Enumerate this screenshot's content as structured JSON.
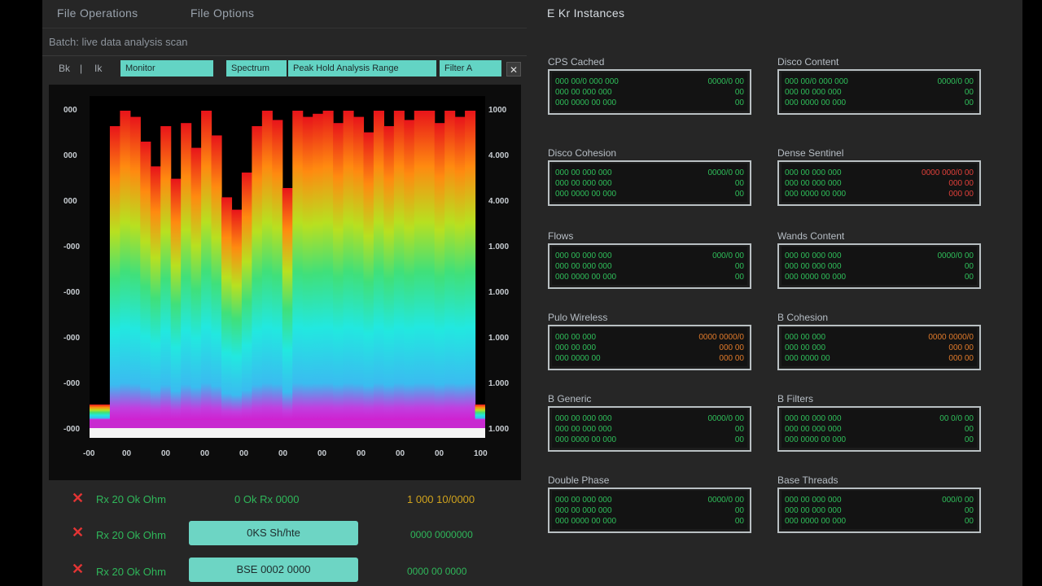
{
  "menu": {
    "items": [
      "File Operations",
      "File Options"
    ]
  },
  "toolbar": {
    "subtitle": "Batch: live data analysis scan",
    "btn_a": "Bk",
    "btn_b": "|",
    "btn_c": "Ik",
    "tabs": [
      "Monitor",
      "Spectrum",
      "Peak Hold Analysis Range",
      "Filter A"
    ]
  },
  "spectrum": {
    "y_left": [
      "000",
      "000",
      "000",
      "-000",
      "-000",
      "-000",
      "-000",
      "-000"
    ],
    "y_right": [
      "1000",
      "4.000",
      "4.000",
      "1.000",
      "1.000",
      "1.000",
      "1.000",
      "1.000"
    ],
    "x_ticks": [
      "-00",
      "00",
      "00",
      "00",
      "00",
      "00",
      "00",
      "00",
      "00",
      "00",
      "100"
    ],
    "levels": [
      0.05,
      0.05,
      0.95,
      1,
      0.98,
      0.9,
      0.82,
      0.95,
      0.78,
      0.96,
      0.88,
      1,
      0.92,
      0.72,
      0.68,
      0.8,
      0.95,
      1,
      0.97,
      0.75,
      1,
      0.98,
      0.99,
      1,
      0.96,
      1,
      0.98,
      0.93,
      1,
      0.95,
      1,
      0.97,
      1,
      1,
      0.96,
      1,
      0.98,
      1,
      0.05
    ]
  },
  "status_rows": [
    {
      "label": "Rx 20 Ok Ohm",
      "value": "0 Ok Rx 0000",
      "right": "1 000 10/0000",
      "right_color": "gold",
      "button": ""
    },
    {
      "label": "Rx 20 Ok Ohm",
      "value": "",
      "right": "0000 0000000",
      "right_color": "green",
      "button": "0KS Sh/hte"
    },
    {
      "label": "Rx 20 Ok Ohm",
      "value": "",
      "right": "0000 00 0000",
      "right_color": "green",
      "button": "BSE 0002 0000"
    }
  ],
  "right_panel": {
    "title": "E Kr Instances",
    "cards": [
      {
        "label": "CPS     Cached",
        "lines": [
          "000 00/0 000 000",
          "000 00 000 000",
          "000 0000 00 000"
        ],
        "right": [
          "0000/0 00",
          "00",
          "00"
        ],
        "color": "green"
      },
      {
        "label": "Disco Content",
        "lines": [
          "000 00/0 000 000",
          "000 00 000 000",
          "000 0000 00 000"
        ],
        "right": [
          "0000/0 00",
          "00",
          "00"
        ],
        "color": "green"
      },
      {
        "label": "Disco Cohesion",
        "lines": [
          "000 00 000 000",
          "000 00 000 000",
          "000 0000 00 000"
        ],
        "right": [
          "0000/0 00",
          "00",
          "00"
        ],
        "color": "green"
      },
      {
        "label": "Dense Sentinel",
        "lines": [
          "000 00 000 000",
          "000 00 000 000",
          "000 0000 00 000"
        ],
        "right": [
          "0000 000/0 00",
          "000 00",
          "000 00"
        ],
        "color": "red"
      },
      {
        "label": "Flows",
        "lines": [
          "000 00 000 000",
          "000 00 000 000",
          "000 0000 00 000"
        ],
        "right": [
          "000/0 00",
          "00",
          "00"
        ],
        "color": "green"
      },
      {
        "label": "Wands Content",
        "lines": [
          "000 00 000 000",
          "000 00 000 000",
          "000 0000 00 000"
        ],
        "right": [
          "0000/0 00",
          "00",
          "00"
        ],
        "color": "green"
      },
      {
        "label": "Pulo Wireless",
        "lines": [
          "000 00 000",
          "000 00 000",
          "000 0000 00"
        ],
        "right": [
          "0000 0000/0",
          "000 00",
          "000 00"
        ],
        "color": "orange"
      },
      {
        "label": "B Cohesion",
        "lines": [
          "000 00 000",
          "000 00 000",
          "000 0000 00"
        ],
        "right": [
          "0000 0000/0",
          "000 00",
          "000 00"
        ],
        "color": "orange"
      },
      {
        "label": "B Generic",
        "lines": [
          "000 00 000 000",
          "000 00 000 000",
          "000 0000 00 000"
        ],
        "right": [
          "0000/0 00",
          "00",
          "00"
        ],
        "color": "green"
      },
      {
        "label": "B Filters",
        "lines": [
          "000 00 000 000",
          "000 00 000 000",
          "000 0000 00 000"
        ],
        "right": [
          "00 0/0 00",
          "00",
          "00"
        ],
        "color": "green"
      },
      {
        "label": "Double Phase",
        "lines": [
          "000 00 000 000",
          "000 00 000 000",
          "000 0000 00 000"
        ],
        "right": [
          "0000/0 00",
          "00",
          "00"
        ],
        "color": "green"
      },
      {
        "label": "Base Threads",
        "lines": [
          "000 00 000 000",
          "000 00 000 000",
          "000 0000 00 000"
        ],
        "right": [
          "000/0 00",
          "00",
          "00"
        ],
        "color": "green"
      }
    ]
  },
  "colors": {
    "accent": "#63d4c4",
    "green_text": "#2fb75a",
    "alert": "#e23434",
    "warning": "#e07a2a"
  }
}
